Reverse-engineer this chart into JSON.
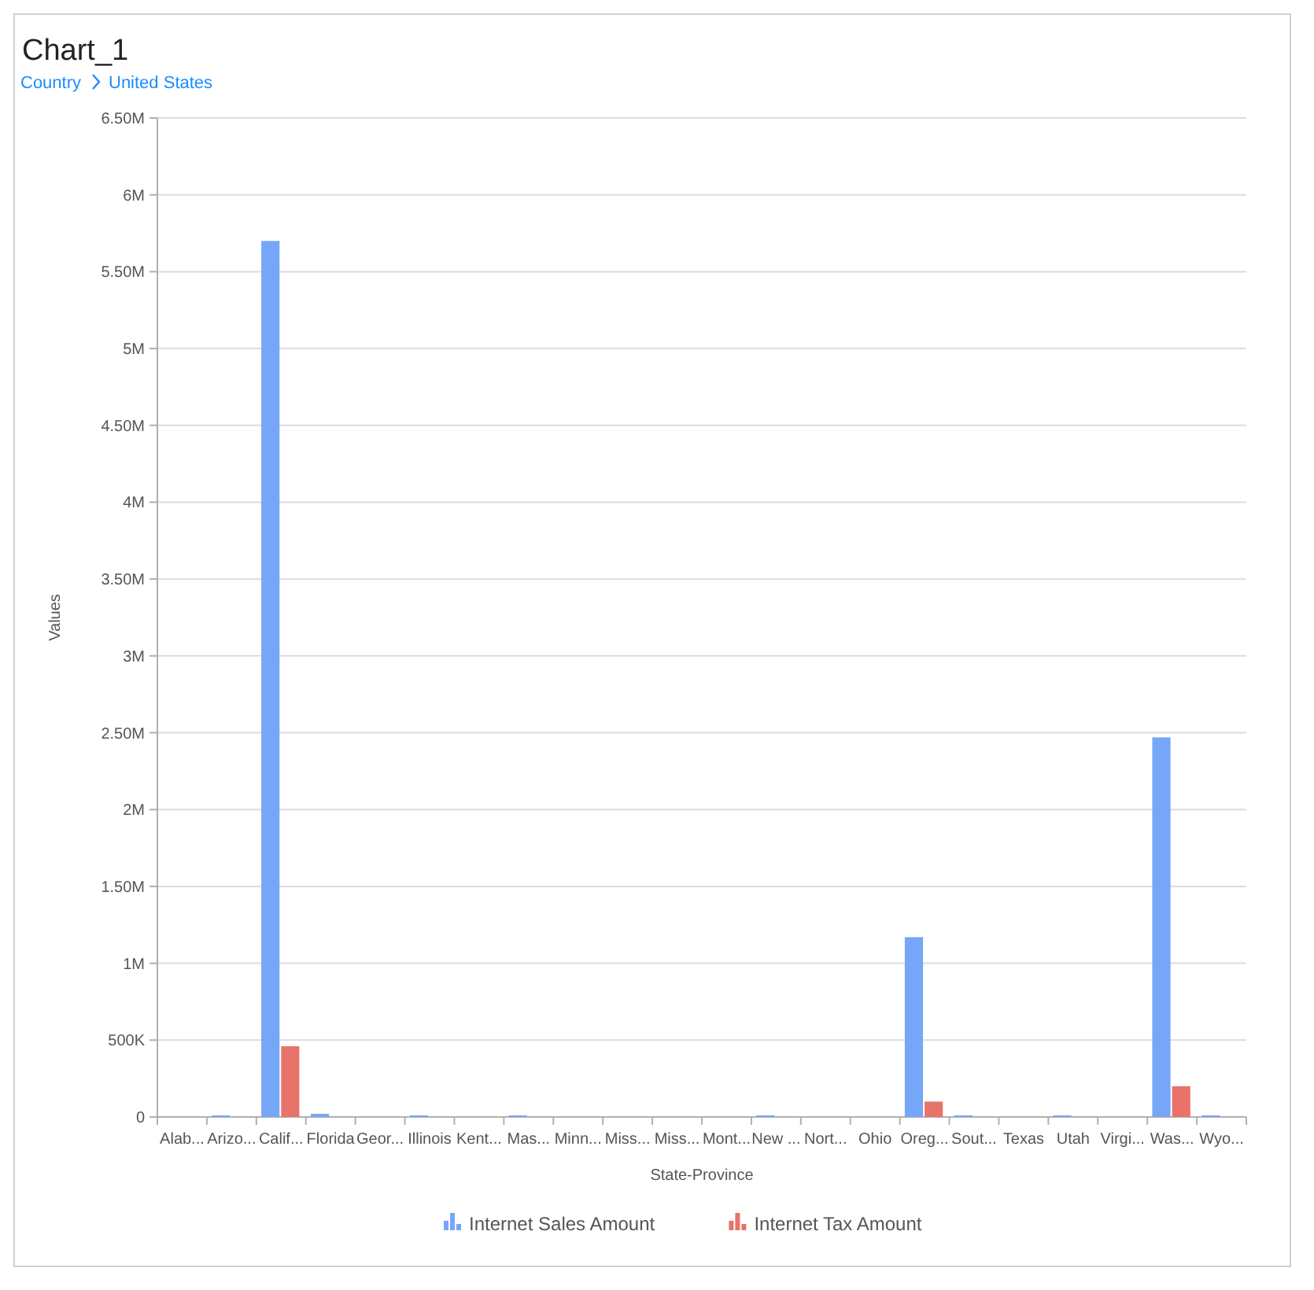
{
  "chart_data": {
    "type": "bar",
    "title": "Chart_1",
    "annotations": [
      "Country",
      "United States"
    ],
    "xlabel": "State-Province",
    "ylabel": "Values",
    "categories": [
      "Alab...",
      "Arizo...",
      "Calif...",
      "Florida",
      "Geor...",
      "Illinois",
      "Kent...",
      "Mas...",
      "Minn...",
      "Miss...",
      "Miss...",
      "Mont...",
      "New ...",
      "Nort...",
      "Ohio",
      "Oreg...",
      "Sout...",
      "Texas",
      "Utah",
      "Virgi...",
      "Was...",
      "Wyo..."
    ],
    "series": [
      {
        "name": "Internet Sales Amount",
        "color": "#76a6f8",
        "values": [
          0,
          10000,
          5700000,
          20000,
          0,
          10000,
          0,
          10000,
          0,
          0,
          0,
          0,
          10000,
          0,
          0,
          1170000,
          10000,
          0,
          10000,
          0,
          2470000,
          10000
        ]
      },
      {
        "name": "Internet Tax Amount",
        "color": "#e8736a",
        "values": [
          0,
          0,
          460000,
          0,
          0,
          0,
          0,
          0,
          0,
          0,
          0,
          0,
          0,
          0,
          0,
          100000,
          0,
          0,
          0,
          0,
          200000,
          0
        ]
      }
    ],
    "ylim": [
      0,
      6500000
    ],
    "yticks": [
      0,
      {
        "value": 500000,
        "label": "500K"
      },
      {
        "value": 1000000,
        "label": "1M"
      },
      {
        "value": 1500000,
        "label": "1.50M"
      },
      {
        "value": 2000000,
        "label": "2M"
      },
      {
        "value": 2500000,
        "label": "2.50M"
      },
      {
        "value": 3000000,
        "label": "3M"
      },
      {
        "value": 3500000,
        "label": "3.50M"
      },
      {
        "value": 4000000,
        "label": "4M"
      },
      {
        "value": 4500000,
        "label": "4.50M"
      },
      {
        "value": 5000000,
        "label": "5M"
      },
      {
        "value": 5500000,
        "label": "5.50M"
      },
      {
        "value": 6000000,
        "label": "6M"
      },
      {
        "value": 6500000,
        "label": "6.50M"
      }
    ],
    "grid": "y",
    "legend": "bottom"
  }
}
